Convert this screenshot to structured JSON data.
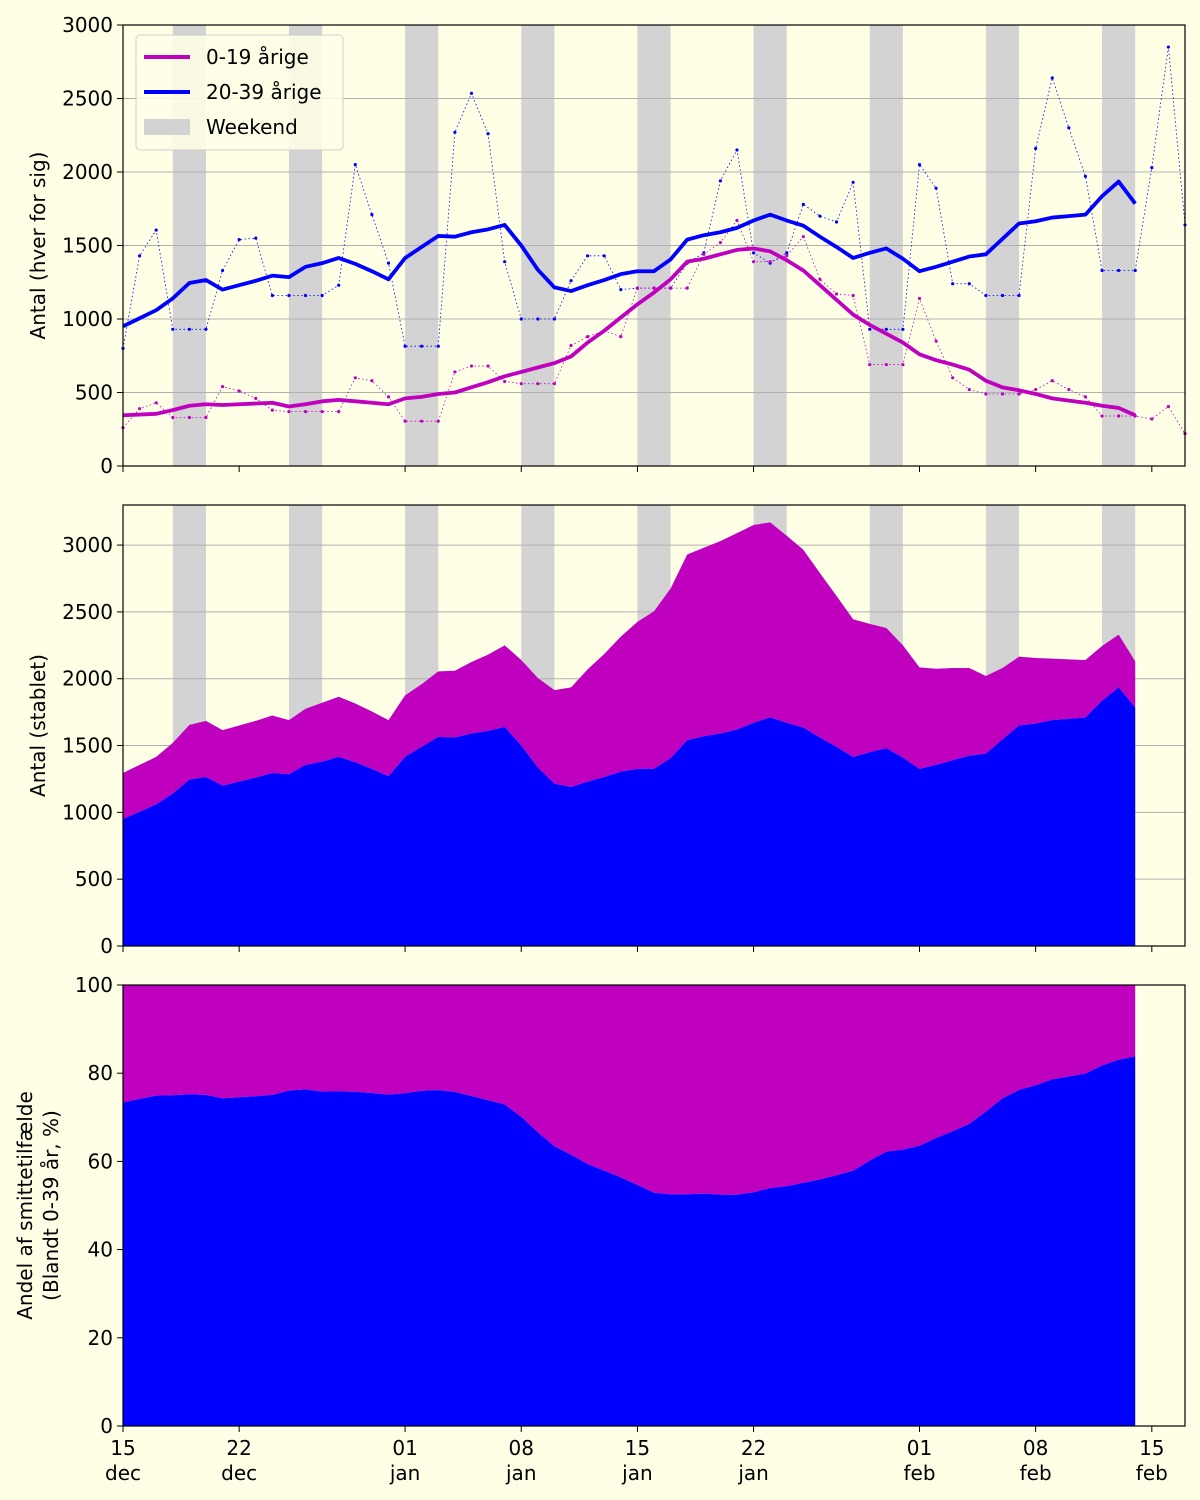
{
  "chart_data": [
    {
      "type": "line",
      "ylabel": "Antal (hver for sig)",
      "ylim": [
        0,
        3000
      ],
      "yticks": [
        0,
        500,
        1000,
        1500,
        2000,
        2500,
        3000
      ],
      "grid": "horizontal",
      "legend_position": "top-left",
      "legend": [
        {
          "label": "0-19 årige",
          "color": "#bf00bf",
          "kind": "line"
        },
        {
          "label": "20-39 årige",
          "color": "#0000ff",
          "kind": "line"
        },
        {
          "label": "Weekend",
          "color": "#d3d3d3",
          "kind": "patch"
        }
      ],
      "series": [
        {
          "name": "20-39 årige",
          "color": "#0000ff",
          "smoothed": [
            950,
            1005,
            1060,
            1140,
            1245,
            1265,
            1200,
            1230,
            1260,
            1295,
            1285,
            1355,
            1380,
            1415,
            1375,
            1325,
            1270,
            1415,
            1490,
            1565,
            1560,
            1590,
            1610,
            1640,
            1500,
            1335,
            1215,
            1190,
            1230,
            1265,
            1305,
            1325,
            1325,
            1405,
            1540,
            1570,
            1590,
            1620,
            1670,
            1710,
            1670,
            1635,
            1560,
            1490,
            1415,
            1450,
            1480,
            1410,
            1325,
            1355,
            1390,
            1425,
            1440,
            1545,
            1650,
            1665,
            1690,
            1700,
            1710,
            1835,
            1935,
            1785
          ],
          "daily": [
            800,
            1430,
            1605,
            930,
            930,
            930,
            1330,
            1540,
            1550,
            1160,
            1160,
            1160,
            1160,
            1230,
            2050,
            1710,
            1380,
            815,
            815,
            815,
            2270,
            2535,
            2260,
            1390,
            1000,
            1000,
            1000,
            1260,
            1430,
            1430,
            1200,
            1210,
            1210,
            1210,
            1380,
            1450,
            1940,
            2150,
            1450,
            1380,
            1450,
            1780,
            1700,
            1660,
            1930,
            930,
            930,
            930,
            2050,
            1890,
            1240,
            1240,
            1160,
            1160,
            1160,
            2160,
            2640,
            2300,
            1970,
            1330,
            1330,
            1330,
            2030,
            2850,
            1640
          ]
        },
        {
          "name": "0-19 årige",
          "color": "#bf00bf",
          "smoothed": [
            345,
            350,
            355,
            380,
            410,
            420,
            415,
            420,
            425,
            430,
            405,
            420,
            440,
            450,
            440,
            430,
            420,
            460,
            470,
            490,
            500,
            535,
            570,
            610,
            640,
            670,
            700,
            745,
            840,
            920,
            1010,
            1100,
            1180,
            1270,
            1390,
            1410,
            1440,
            1470,
            1480,
            1460,
            1400,
            1330,
            1230,
            1130,
            1030,
            960,
            900,
            840,
            760,
            720,
            690,
            655,
            580,
            535,
            515,
            490,
            460,
            445,
            430,
            410,
            395,
            345
          ],
          "daily": [
            260,
            390,
            430,
            330,
            330,
            330,
            540,
            510,
            460,
            380,
            370,
            370,
            370,
            370,
            600,
            580,
            470,
            305,
            305,
            305,
            640,
            680,
            680,
            575,
            560,
            560,
            560,
            820,
            880,
            920,
            880,
            1210,
            1210,
            1210,
            1210,
            1440,
            1520,
            1670,
            1390,
            1390,
            1430,
            1560,
            1270,
            1170,
            1160,
            690,
            690,
            690,
            1140,
            850,
            600,
            520,
            490,
            490,
            490,
            520,
            580,
            520,
            470,
            340,
            340,
            340,
            320,
            405,
            220
          ]
        }
      ]
    },
    {
      "type": "area",
      "stacked": true,
      "ylabel": "Antal (stablet)",
      "ylim": [
        0,
        3300
      ],
      "yticks": [
        0,
        500,
        1000,
        1500,
        2000,
        2500,
        3000
      ],
      "grid": "horizontal",
      "series": [
        {
          "name": "20-39 årige",
          "color": "#0000ff"
        },
        {
          "name": "0-19 årige",
          "color": "#bf00bf"
        }
      ]
    },
    {
      "type": "area",
      "stacked": true,
      "percent": true,
      "ylabel": "Andel af smittetilfælde",
      "ylabel2": "(Blandt 0-39 år, %)",
      "ylim": [
        0,
        100
      ],
      "yticks": [
        0,
        20,
        40,
        60,
        80,
        100
      ],
      "grid": "none",
      "series": [
        {
          "name": "20-39 årige",
          "color": "#0000ff"
        },
        {
          "name": "0-19 årige",
          "color": "#bf00bf"
        }
      ]
    }
  ],
  "x_axis": {
    "start_date": "2021-12-15",
    "end_date": "2022-02-17",
    "weekends": [
      "2021-12-18",
      "2021-12-25",
      "2022-01-01",
      "2022-01-08",
      "2022-01-15",
      "2022-01-22",
      "2022-01-29",
      "2022-02-05",
      "2022-02-12"
    ],
    "ticks": [
      {
        "date": "2021-12-15",
        "day": "15",
        "month": "dec"
      },
      {
        "date": "2021-12-22",
        "day": "22",
        "month": "dec"
      },
      {
        "date": "2022-01-01",
        "day": "01",
        "month": "jan"
      },
      {
        "date": "2022-01-08",
        "day": "08",
        "month": "jan"
      },
      {
        "date": "2022-01-15",
        "day": "15",
        "month": "jan"
      },
      {
        "date": "2022-01-22",
        "day": "22",
        "month": "jan"
      },
      {
        "date": "2022-02-01",
        "day": "01",
        "month": "feb"
      },
      {
        "date": "2022-02-08",
        "day": "08",
        "month": "feb"
      },
      {
        "date": "2022-02-15",
        "day": "15",
        "month": "feb"
      }
    ]
  }
}
